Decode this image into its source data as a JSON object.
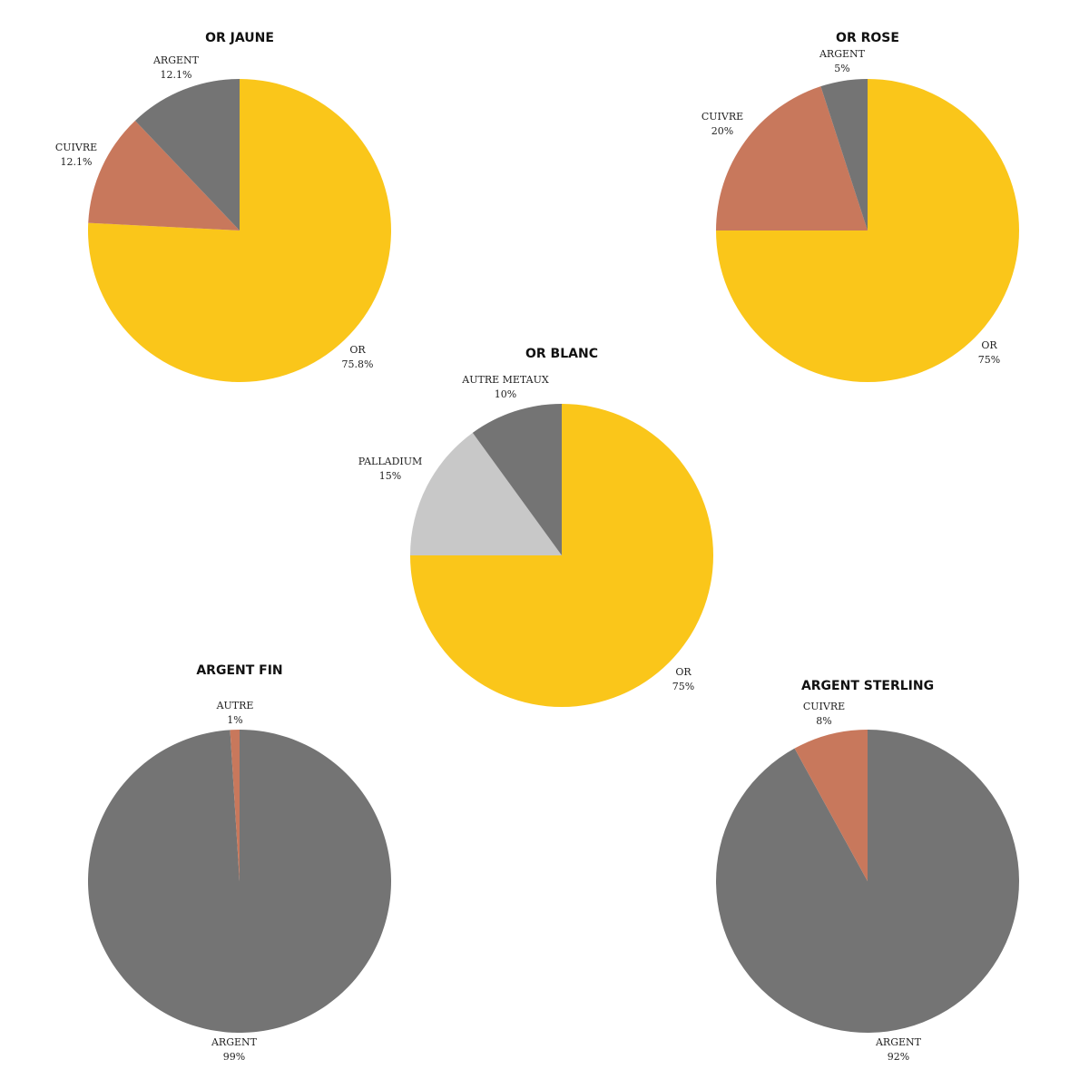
{
  "chart_data": [
    {
      "type": "pie",
      "title": "OR JAUNE",
      "slices": [
        {
          "label": "OR",
          "value": 75.8,
          "text": "75.8%",
          "color": "#FAC61A"
        },
        {
          "label": "CUIVRE",
          "value": 12.1,
          "text": "12.1%",
          "color": "#C8785C"
        },
        {
          "label": "ARGENT",
          "value": 12.1,
          "text": "12.1%",
          "color": "#747474"
        }
      ]
    },
    {
      "type": "pie",
      "title": "OR ROSE",
      "slices": [
        {
          "label": "OR",
          "value": 75,
          "text": "75%",
          "color": "#FAC61A"
        },
        {
          "label": "CUIVRE",
          "value": 20,
          "text": "20%",
          "color": "#C8785C"
        },
        {
          "label": "ARGENT",
          "value": 5,
          "text": "5%",
          "color": "#747474"
        }
      ]
    },
    {
      "type": "pie",
      "title": "OR BLANC",
      "slices": [
        {
          "label": "OR",
          "value": 75,
          "text": "75%",
          "color": "#FAC61A"
        },
        {
          "label": "PALLADIUM",
          "value": 15,
          "text": "15%",
          "color": "#C8C8C8"
        },
        {
          "label": "AUTRE METAUX",
          "value": 10,
          "text": "10%",
          "color": "#747474"
        }
      ]
    },
    {
      "type": "pie",
      "title": "ARGENT FIN",
      "slices": [
        {
          "label": "ARGENT",
          "value": 99,
          "text": "99%",
          "color": "#747474"
        },
        {
          "label": "AUTRE",
          "value": 1,
          "text": "1%",
          "color": "#C8785C"
        }
      ]
    },
    {
      "type": "pie",
      "title": "ARGENT STERLING",
      "slices": [
        {
          "label": "ARGENT",
          "value": 92,
          "text": "92%",
          "color": "#747474"
        },
        {
          "label": "CUIVRE",
          "value": 8,
          "text": "8%",
          "color": "#C8785C"
        }
      ]
    }
  ]
}
